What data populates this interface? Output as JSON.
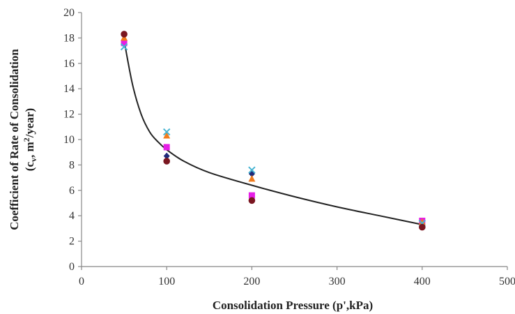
{
  "chart_data": {
    "type": "scatter",
    "title": "",
    "xlabel": "Consolidation Pressure (p',kPa)",
    "ylabel_line1": "Coefficient of Rate of Consolidation",
    "ylabel_line2_prefix": "(c",
    "ylabel_line2_sub": "v",
    "ylabel_line2_mid": ", m",
    "ylabel_line2_sup": "2",
    "ylabel_line2_suffix": "/year)",
    "xlim": [
      0,
      500
    ],
    "ylim": [
      0,
      20
    ],
    "xticks": [
      0,
      100,
      200,
      300,
      400,
      500
    ],
    "yticks": [
      0,
      2,
      4,
      6,
      8,
      10,
      12,
      14,
      16,
      18,
      20
    ],
    "grid": false,
    "legend": "none",
    "series": [
      {
        "marker": "diamond",
        "color": "#1f2a7a",
        "x": [
          50,
          100,
          200,
          400
        ],
        "y": [
          17.8,
          8.7,
          7.3,
          3.3
        ]
      },
      {
        "marker": "square",
        "color": "#e61ee6",
        "x": [
          50,
          100,
          200,
          400
        ],
        "y": [
          17.6,
          9.4,
          5.6,
          3.6
        ]
      },
      {
        "marker": "triangle",
        "color": "#f07c1e",
        "x": [
          50,
          100,
          200,
          400
        ],
        "y": [
          18.0,
          10.3,
          6.9,
          3.5
        ]
      },
      {
        "marker": "x",
        "color": "#46b4d2",
        "x": [
          50,
          100,
          200,
          400
        ],
        "y": [
          17.3,
          10.6,
          7.6,
          3.4
        ]
      },
      {
        "marker": "circle",
        "color": "#7a1620",
        "x": [
          50,
          100,
          200,
          400
        ],
        "y": [
          18.3,
          8.3,
          5.2,
          3.1
        ]
      }
    ],
    "trendline": {
      "color": "#222222",
      "x": [
        50,
        60,
        70,
        80,
        90,
        100,
        120,
        150,
        200,
        250,
        300,
        350,
        400
      ],
      "y": [
        17.8,
        14.3,
        12.0,
        10.6,
        9.8,
        9.2,
        8.3,
        7.4,
        6.4,
        5.5,
        4.7,
        4.0,
        3.3
      ]
    }
  }
}
